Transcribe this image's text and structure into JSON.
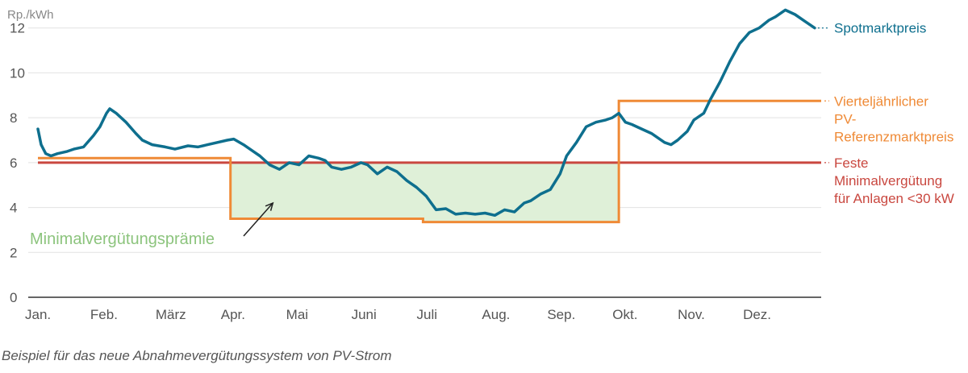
{
  "colors": {
    "spot": "#0e6f8e",
    "referenz": "#ef8a36",
    "feste": "#c9473f",
    "fill": "#dff0d8",
    "fill_label": "#8cc47d",
    "grid": "#e2e2e2",
    "axis": "#333333"
  },
  "chart_data": {
    "type": "line",
    "ylabel": "Rp./kWh",
    "ylim": [
      0,
      12.6
    ],
    "yticks": [
      0,
      2,
      4,
      6,
      8,
      10,
      12
    ],
    "xlim": [
      0,
      12
    ],
    "months": [
      "Jan.",
      "Feb.",
      "März",
      "Apr.",
      "Mai",
      "Juni",
      "Juli",
      "Aug.",
      "Sep.",
      "Okt.",
      "Nov.",
      "Dez."
    ],
    "series": [
      {
        "name": "Spotmarktpreis",
        "x": [
          0.0,
          0.05,
          0.12,
          0.2,
          0.3,
          0.45,
          0.55,
          0.7,
          0.85,
          0.95,
          1.05,
          1.1,
          1.2,
          1.35,
          1.5,
          1.6,
          1.75,
          1.95,
          2.1,
          2.3,
          2.45,
          2.6,
          2.75,
          2.9,
          3.0,
          3.15,
          3.3,
          3.4,
          3.55,
          3.7,
          3.85,
          4.0,
          4.15,
          4.3,
          4.4,
          4.5,
          4.65,
          4.8,
          4.95,
          5.05,
          5.2,
          5.35,
          5.5,
          5.65,
          5.8,
          5.95,
          6.1,
          6.25,
          6.4,
          6.55,
          6.7,
          6.85,
          7.0,
          7.15,
          7.3,
          7.45,
          7.55,
          7.7,
          7.85,
          8.0,
          8.1,
          8.25,
          8.4,
          8.55,
          8.7,
          8.8,
          8.9,
          9.0,
          9.1,
          9.25,
          9.4,
          9.5,
          9.6,
          9.7,
          9.8,
          9.95,
          10.05,
          10.2,
          10.3,
          10.45,
          10.6,
          10.75,
          10.9,
          11.05,
          11.2,
          11.3,
          11.45,
          11.6,
          11.75,
          11.9
        ],
        "y": [
          7.5,
          6.8,
          6.4,
          6.3,
          6.4,
          6.5,
          6.6,
          6.7,
          7.2,
          7.6,
          8.2,
          8.4,
          8.2,
          7.8,
          7.3,
          7.0,
          6.8,
          6.7,
          6.6,
          6.75,
          6.7,
          6.8,
          6.9,
          7.0,
          7.05,
          6.8,
          6.5,
          6.3,
          5.9,
          5.7,
          6.0,
          5.9,
          6.3,
          6.2,
          6.1,
          5.8,
          5.7,
          5.8,
          6.0,
          5.9,
          5.5,
          5.8,
          5.6,
          5.2,
          4.9,
          4.5,
          3.9,
          3.95,
          3.7,
          3.75,
          3.7,
          3.75,
          3.65,
          3.9,
          3.8,
          4.2,
          4.3,
          4.6,
          4.8,
          5.5,
          6.3,
          6.9,
          7.6,
          7.8,
          7.9,
          8.0,
          8.2,
          7.8,
          7.7,
          7.5,
          7.3,
          7.1,
          6.9,
          6.8,
          7.0,
          7.4,
          7.9,
          8.2,
          8.8,
          9.6,
          10.5,
          11.3,
          11.8,
          12.0,
          12.35,
          12.5,
          12.8,
          12.6,
          12.3,
          12.0
        ]
      },
      {
        "name": "Vierteljährlicher PV-Referenzmarktpreis",
        "step": [
          {
            "x0": 0,
            "x1": 2.95,
            "y": 6.2
          },
          {
            "x0": 2.95,
            "x1": 5.9,
            "y": 3.5
          },
          {
            "x0": 5.9,
            "x1": 8.9,
            "y": 3.35
          },
          {
            "x0": 8.9,
            "x1": 12,
            "y": 8.75
          }
        ]
      },
      {
        "name": "Feste Minimalvergütung für Anlagen <30 kW",
        "value": 6.0
      }
    ],
    "legend_lines": {
      "spot": [
        "Spotmarktpreis"
      ],
      "referenz": [
        "Vierteljährlicher",
        "PV-",
        "Referenzmarktpreis"
      ],
      "feste": [
        "Feste",
        "Minimalvergütung",
        "für Anlagen <30 kW"
      ]
    },
    "annotation": {
      "text": "Minimalvergütungsprämie",
      "arrow_to": {
        "x": 3.6,
        "y": 4.2
      }
    }
  },
  "caption": "Beispiel für das neue Abnahmevergütungssystem von PV-Strom"
}
